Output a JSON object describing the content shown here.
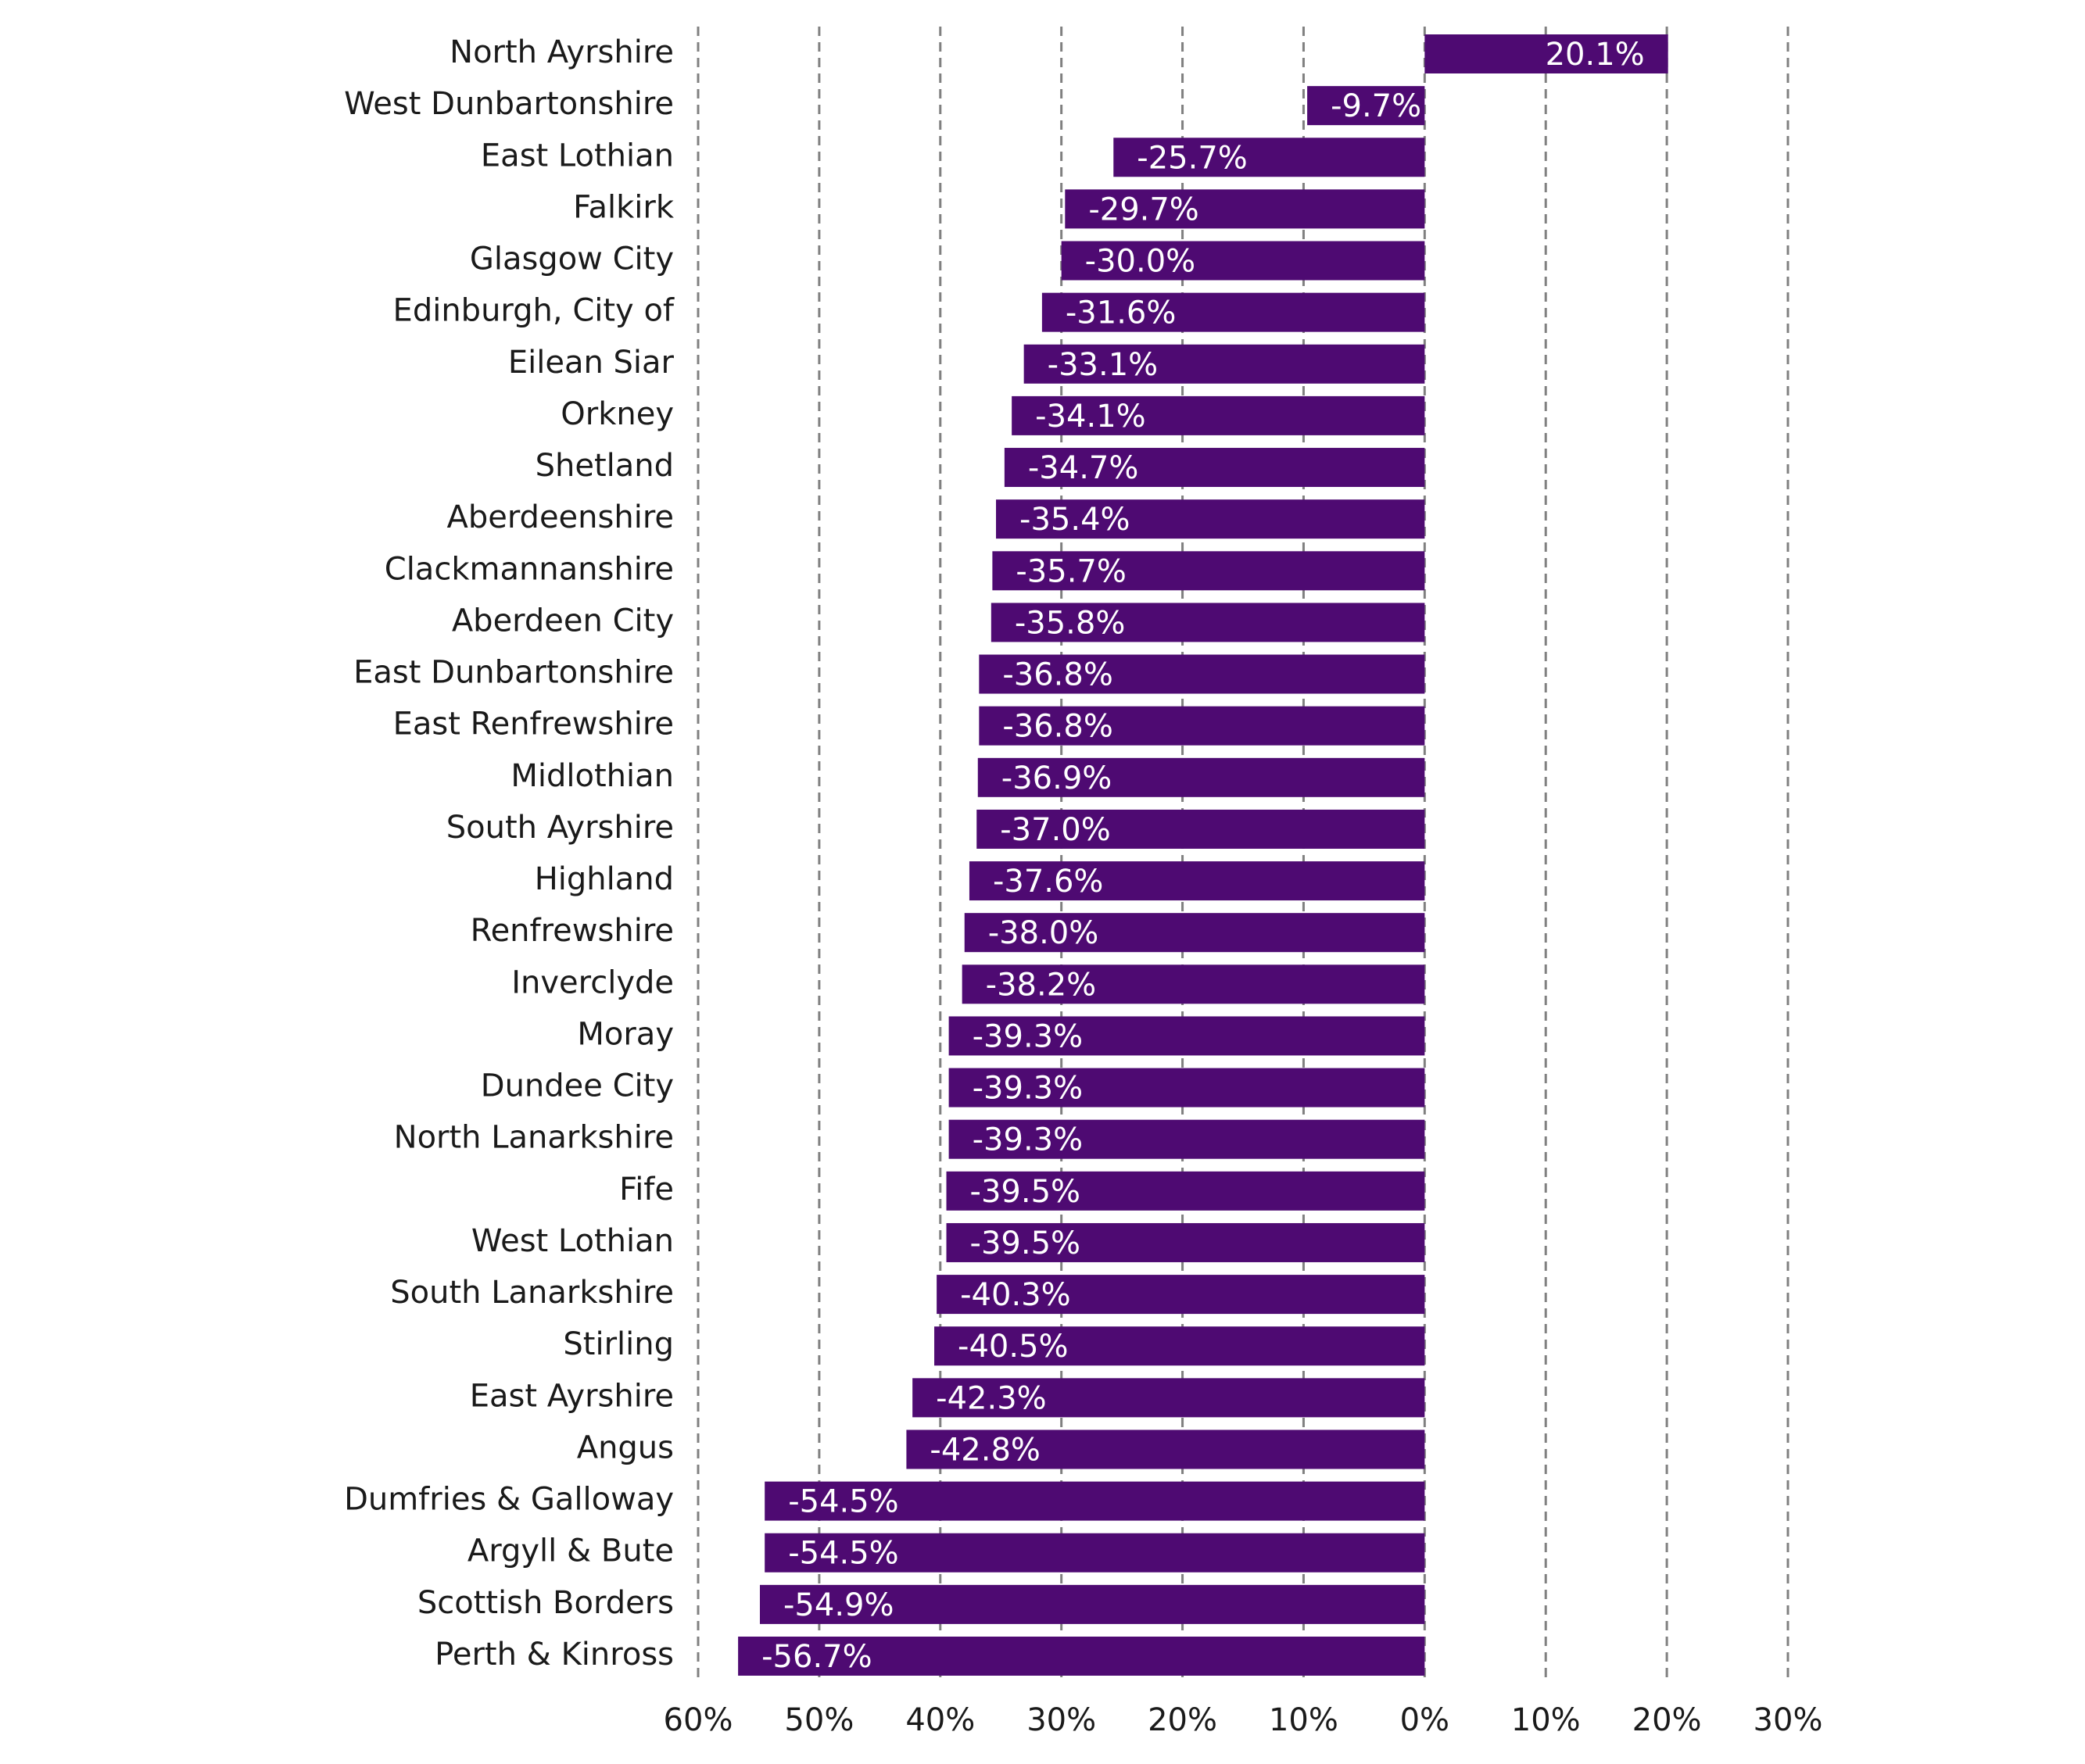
{
  "chart_data": {
    "type": "bar",
    "orientation": "horizontal",
    "color": "#4e0a72",
    "grid": true,
    "grid_style": "dashed",
    "categories": [
      "North Ayrshire",
      "West Dunbartonshire",
      "East Lothian",
      "Falkirk",
      "Glasgow City",
      "Edinburgh, City of",
      "Eilean Siar",
      "Orkney",
      "Shetland",
      "Aberdeenshire",
      "Clackmannanshire",
      "Aberdeen City",
      "East Dunbartonshire",
      "East Renfrewshire",
      "Midlothian",
      "South Ayrshire",
      "Highland",
      "Renfrewshire",
      "Inverclyde",
      "Moray",
      "Dundee City",
      "North Lanarkshire",
      "Fife",
      "West Lothian",
      "South Lanarkshire",
      "Stirling",
      "East Ayrshire",
      "Angus",
      "Dumfries & Galloway",
      "Argyll & Bute",
      "Scottish Borders",
      "Perth & Kinross"
    ],
    "values": [
      20.1,
      -9.7,
      -25.7,
      -29.7,
      -30.0,
      -31.6,
      -33.1,
      -34.1,
      -34.7,
      -35.4,
      -35.7,
      -35.8,
      -36.8,
      -36.8,
      -36.9,
      -37.0,
      -37.6,
      -38.0,
      -38.2,
      -39.3,
      -39.3,
      -39.3,
      -39.5,
      -39.5,
      -40.3,
      -40.5,
      -42.3,
      -42.8,
      -54.5,
      -54.5,
      -54.9,
      -56.7
    ],
    "value_labels": [
      "20.1%",
      "-9.7%",
      "-25.7%",
      "-29.7%",
      "-30.0%",
      "-31.6%",
      "-33.1%",
      "-34.1%",
      "-34.7%",
      "-35.4%",
      "-35.7%",
      "-35.8%",
      "-36.8%",
      "-36.8%",
      "-36.9%",
      "-37.0%",
      "-37.6%",
      "-38.0%",
      "-38.2%",
      "-39.3%",
      "-39.3%",
      "-39.3%",
      "-39.5%",
      "-39.5%",
      "-40.3%",
      "-40.5%",
      "-42.3%",
      "-42.8%",
      "-54.5%",
      "-54.5%",
      "-54.9%",
      "-56.7%"
    ],
    "xlim": [
      -60,
      30
    ],
    "xticks": [
      {
        "value": -60,
        "label": "60%"
      },
      {
        "value": -50,
        "label": "50%"
      },
      {
        "value": -40,
        "label": "40%"
      },
      {
        "value": -30,
        "label": "30%"
      },
      {
        "value": -20,
        "label": "20%"
      },
      {
        "value": -10,
        "label": "10%"
      },
      {
        "value": 0,
        "label": "0%"
      },
      {
        "value": 10,
        "label": "10%"
      },
      {
        "value": 20,
        "label": "20%"
      },
      {
        "value": 30,
        "label": "30%"
      }
    ]
  }
}
